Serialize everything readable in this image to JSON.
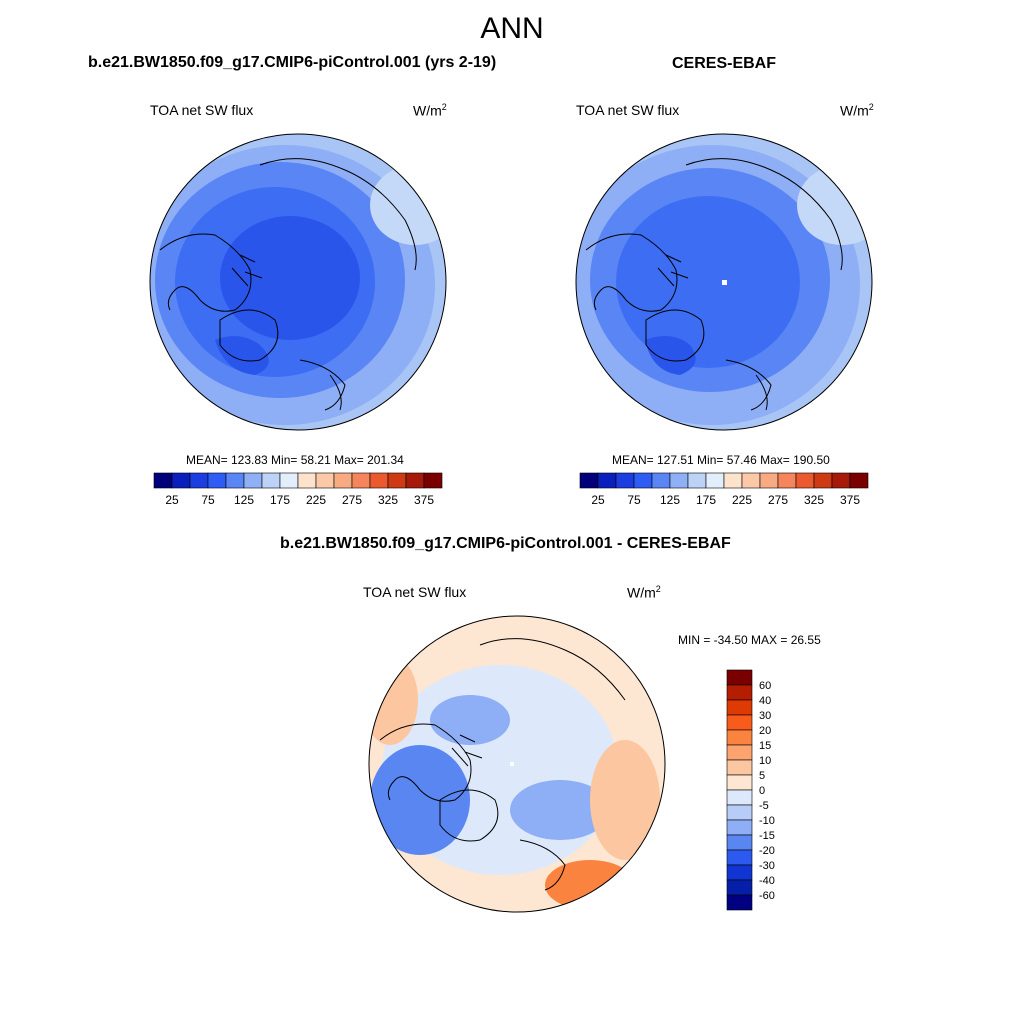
{
  "figure": {
    "season": "ANN"
  },
  "panels": {
    "left": {
      "title": "b.e21.BW1850.f09_g17.CMIP6-piControl.001 (yrs 2-19)",
      "variable": "TOA net SW flux",
      "units": "W/m",
      "units_exp": "2",
      "stats": "MEAN= 123.83  Min=  58.21  Max= 201.34"
    },
    "right": {
      "title": "CERES-EBAF",
      "variable": "TOA net SW flux",
      "units": "W/m",
      "units_exp": "2",
      "stats": "MEAN= 127.51  Min=  57.46  Max= 190.50"
    },
    "diff": {
      "title": "b.e21.BW1850.f09_g17.CMIP6-piControl.001 - CERES-EBAF",
      "variable": "TOA net SW flux",
      "units": "W/m",
      "units_exp": "2",
      "stats": "MIN = -34.50 MAX =  26.55"
    }
  },
  "chart_data": [
    {
      "type": "heatmap",
      "title": "b.e21.BW1850.f09_g17.CMIP6-piControl.001 (yrs 2-19)",
      "projection": "north polar stereographic",
      "variable": "TOA net SW flux",
      "units": "W/m2",
      "mean": 123.83,
      "min": 58.21,
      "max": 201.34,
      "colorbar": {
        "orientation": "horizontal",
        "tick_labels": [
          "25",
          "75",
          "125",
          "175",
          "225",
          "275",
          "325",
          "375"
        ],
        "colors": [
          "#00007a",
          "#0a1fbc",
          "#1c3ee0",
          "#2f5cf5",
          "#5a86f5",
          "#8fb0f5",
          "#bcd2f7",
          "#e2eefb",
          "#fde3cc",
          "#fcc9a8",
          "#f8ab83",
          "#f4855c",
          "#ea5a2e",
          "#cd3a14",
          "#a51a08",
          "#7a0000"
        ]
      }
    },
    {
      "type": "heatmap",
      "title": "CERES-EBAF",
      "projection": "north polar stereographic",
      "variable": "TOA net SW flux",
      "units": "W/m2",
      "mean": 127.51,
      "min": 57.46,
      "max": 190.5,
      "colorbar": {
        "orientation": "horizontal",
        "tick_labels": [
          "25",
          "75",
          "125",
          "175",
          "225",
          "275",
          "325",
          "375"
        ],
        "colors": [
          "#00007a",
          "#0a1fbc",
          "#1c3ee0",
          "#2f5cf5",
          "#5a86f5",
          "#8fb0f5",
          "#bcd2f7",
          "#e2eefb",
          "#fde3cc",
          "#fcc9a8",
          "#f8ab83",
          "#f4855c",
          "#ea5a2e",
          "#cd3a14",
          "#a51a08",
          "#7a0000"
        ]
      }
    },
    {
      "type": "heatmap",
      "title": "b.e21.BW1850.f09_g17.CMIP6-piControl.001 - CERES-EBAF",
      "projection": "north polar stereographic",
      "variable": "TOA net SW flux",
      "units": "W/m2",
      "min": -34.5,
      "max": 26.55,
      "colorbar": {
        "orientation": "vertical",
        "levels": [
          "60",
          "40",
          "30",
          "20",
          "15",
          "10",
          "5",
          "0",
          "-5",
          "-10",
          "-15",
          "-20",
          "-30",
          "-40",
          "-60"
        ],
        "colors": [
          "#7a0000",
          "#b51d00",
          "#de3a04",
          "#f95b1c",
          "#fb8340",
          "#fca370",
          "#fcc6a0",
          "#fde6d2",
          "#dde9fa",
          "#b7cdf7",
          "#8eaef5",
          "#5a86f2",
          "#2c5aef",
          "#1035d2",
          "#061fa8",
          "#000080"
        ]
      }
    }
  ]
}
